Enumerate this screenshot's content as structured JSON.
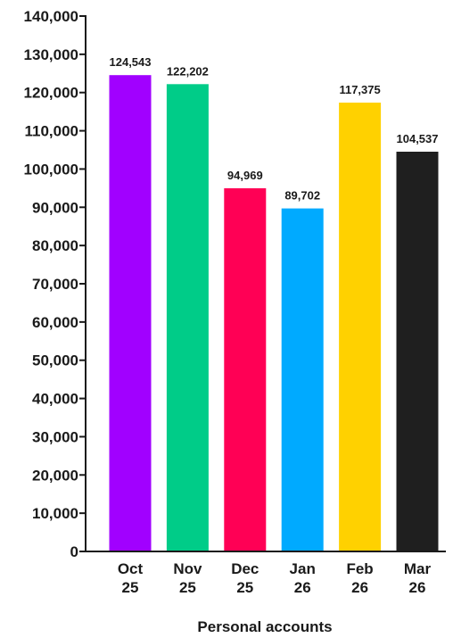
{
  "chart_data": {
    "type": "bar",
    "title": "",
    "xlabel": "Personal accounts",
    "ylabel": "",
    "ylim": [
      0,
      140000
    ],
    "yticks": [
      0,
      10000,
      20000,
      30000,
      40000,
      50000,
      60000,
      70000,
      80000,
      90000,
      100000,
      110000,
      120000,
      130000,
      140000
    ],
    "ytick_labels": [
      "0",
      "10,000",
      "20,000",
      "30,000",
      "40,000",
      "50,000",
      "60,000",
      "70,000",
      "80,000",
      "90,000",
      "100,000",
      "110,000",
      "120,000",
      "130,000",
      "140,000"
    ],
    "categories": [
      [
        "Oct",
        "25"
      ],
      [
        "Nov",
        "25"
      ],
      [
        "Dec",
        "25"
      ],
      [
        "Jan",
        "26"
      ],
      [
        "Feb",
        "26"
      ],
      [
        "Mar",
        "26"
      ]
    ],
    "values": [
      124543,
      122202,
      94969,
      89702,
      117375,
      104537
    ],
    "value_labels": [
      "124,543",
      "122,202",
      "94,969",
      "89,702",
      "117,375",
      "104,537"
    ],
    "colors": [
      "#a100ff",
      "#00cc88",
      "#ff0055",
      "#00aaff",
      "#ffd100",
      "#1f1f1f"
    ],
    "grid": false,
    "legend": "none"
  }
}
